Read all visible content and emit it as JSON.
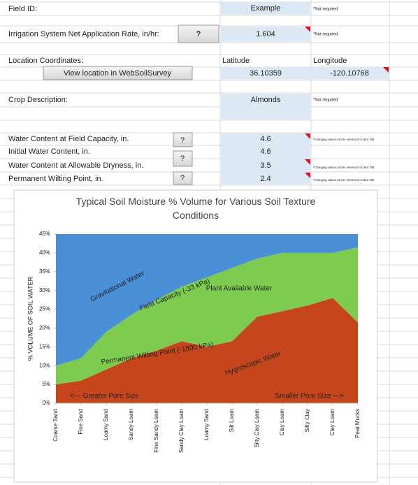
{
  "sheet": {
    "field_id": {
      "label": "Field ID:",
      "value": "Example",
      "note": "*Not required"
    },
    "irrigation": {
      "label": "Irrigation System Net Application Rate, in/hr:",
      "button": "?",
      "value": 1.604,
      "note": "*Not required"
    },
    "location": {
      "label": "Location Coordinates:",
      "button": "View location in WebSoilSurvey",
      "latitude_label": "Latitude",
      "longitude_label": "Longitude",
      "latitude": 36.10359,
      "longitude": -120.10768
    },
    "crop": {
      "label": "Crop Description:",
      "value": "Almonds",
      "note": "*Not required"
    },
    "water": [
      {
        "label": "Water Content at Field Capacity, in.",
        "button": "?",
        "value": 4.6,
        "note": "*Changing values can be entered on Calcs Tab"
      },
      {
        "label": "Initial Water Content, in.",
        "value": 4.6
      },
      {
        "label": "Water Content at Allowable Dryness, in.",
        "button": "?",
        "value": 3.5,
        "note": "*Changing values can be entered on Calcs Tab"
      },
      {
        "label": "Permanent Wilting Point, in.",
        "button": "?",
        "value": 2.4,
        "note": "*Changing values can be entered on Calcs Tab"
      }
    ]
  },
  "chart_data": {
    "type": "stacked_area",
    "title": "Typical Soil Moisture % Volume for Various Soil Texture Conditions",
    "y_label": "% VOLUME OF SOIL WATER",
    "categories": [
      "Coarse Sand",
      "Fine Sand",
      "Loamy Sand",
      "Sandy Loam",
      "Fine Sandy Loam",
      "Sandy Clay Loam",
      "Loamy Sand",
      "Silt Loam",
      "Silty Clay Loam",
      "Clay Loam",
      "Silty Clay",
      "Clay Loam",
      "Peat Mucks"
    ],
    "series": [
      {
        "color": "#c5461c",
        "values": [
          5,
          6,
          9,
          12,
          14,
          16.5,
          15,
          16.5,
          23,
          24.5,
          26,
          28,
          21.5
        ]
      },
      {
        "color": "#7dcc50",
        "values": [
          5,
          6,
          10,
          11.5,
          13.5,
          14.5,
          18.5,
          19.5,
          15.5,
          15.5,
          14,
          12,
          20
        ]
      },
      {
        "color": "#4a90d6",
        "values": [
          35,
          33,
          26,
          21.5,
          17.5,
          14,
          11.5,
          9,
          6.5,
          5,
          5,
          5,
          3.5
        ]
      }
    ],
    "ylim": [
      0,
      45
    ],
    "yticks": [
      {
        "value": 0,
        "label": "0%"
      },
      {
        "value": 5,
        "label": "5%"
      },
      {
        "value": 10,
        "label": "10%"
      },
      {
        "value": 15,
        "label": "15%"
      },
      {
        "value": 20,
        "label": "20%"
      },
      {
        "value": 25,
        "label": "25%"
      },
      {
        "value": 30,
        "label": "30%"
      },
      {
        "value": 35,
        "label": "35%"
      },
      {
        "value": 40,
        "label": "40%"
      },
      {
        "value": 45,
        "label": "45%"
      }
    ],
    "annotations": [
      "Gravitational Water",
      "Field Capacity (-33 kPa)",
      "Plant Available Water",
      "Permanent Wilting Point (-1500 kPa)",
      "Hygroscopic Water",
      "<--- Greater Pore Size",
      "Smaller Pore Size --->"
    ]
  }
}
